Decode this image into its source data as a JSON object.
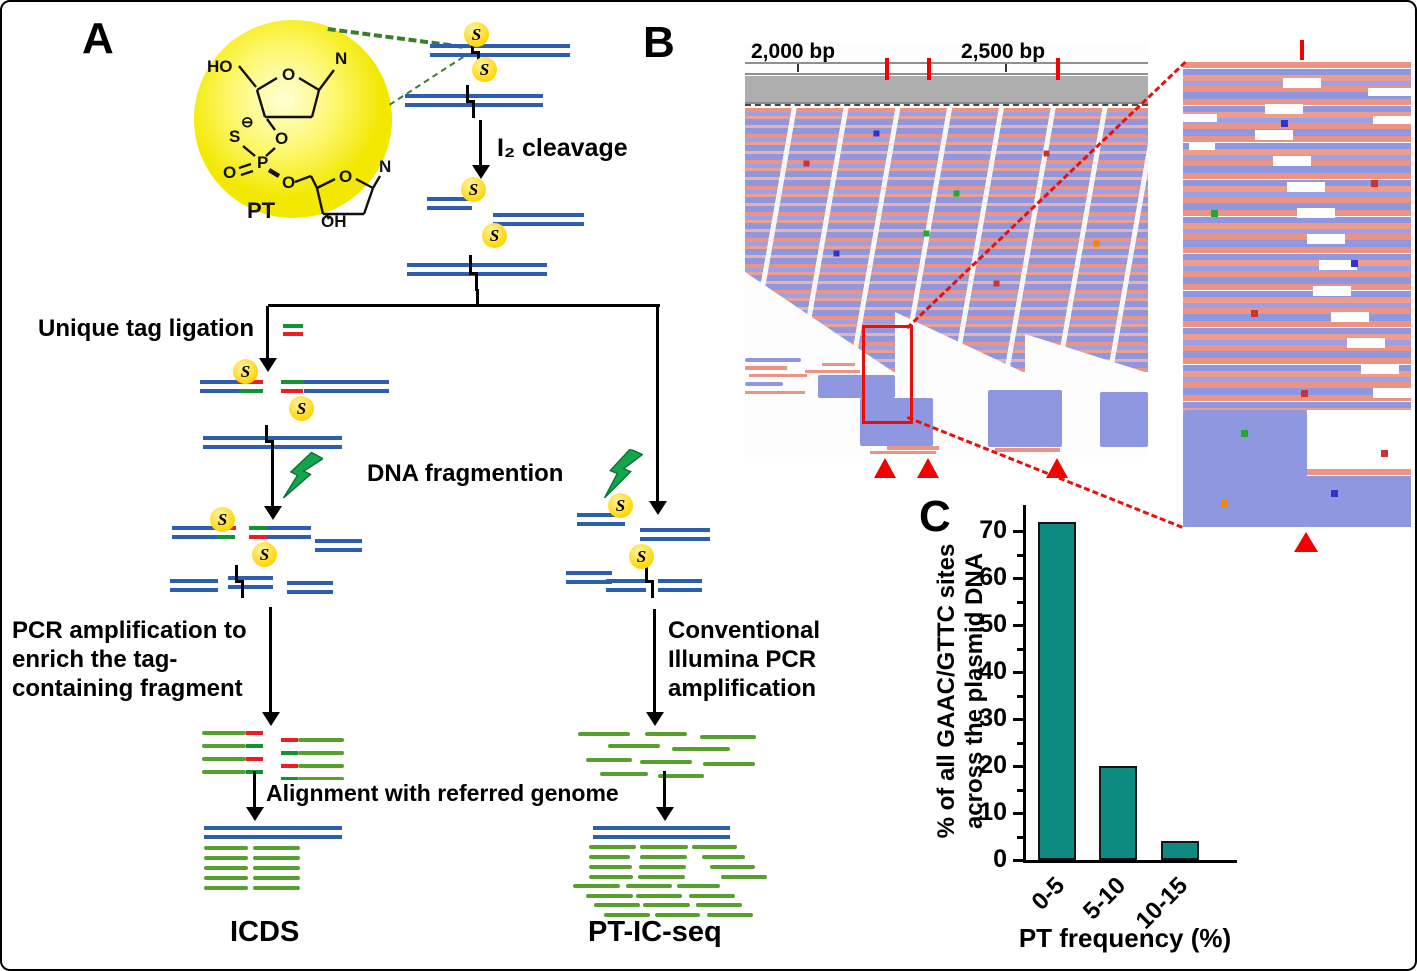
{
  "figure": {
    "panel_a_label": "A",
    "panel_b_label": "B",
    "panel_c_label": "C"
  },
  "panel_a": {
    "s_tag": "S",
    "molecule": {
      "ho": "HO",
      "ring_o_top": "O",
      "n_top": "N",
      "sulfur": "S",
      "charge": "⊖",
      "phosphorus": "P",
      "o_double": "O",
      "o_ester_top": "O",
      "o_ester_bottom": "O",
      "ring_o_bottom": "O",
      "n_bottom": "N",
      "hydroxyl": "OH",
      "name": "PT"
    },
    "steps": {
      "i2_cleavage": "I₂ cleavage",
      "unique_tag_ligation": "Unique tag ligation",
      "dna_fragmention": "DNA fragmention",
      "pcr_left": "PCR amplification to\nenrich the tag-\ncontaining fragment",
      "pcr_right": "Conventional\nIllumina PCR\namplification",
      "alignment": "Alignment with referred genome"
    },
    "outputs": {
      "left": "ICDS",
      "right": "PT-IC-seq"
    }
  },
  "panel_b": {
    "ruler": {
      "left_label": "2,000 bp",
      "right_label": "2,500 bp"
    }
  },
  "chart_data": {
    "type": "bar",
    "categories": [
      "0-5",
      "5-10",
      "10-15"
    ],
    "values": [
      72,
      20,
      4
    ],
    "title": "",
    "xlabel": "PT frequency (%)",
    "ylabel": "% of all GAAC/GTTC sites\nacross the plasmid DNA",
    "ylim": [
      0,
      75
    ],
    "ytick_step": 10,
    "ytick_minor_step": 5,
    "bar_color": "#0f8a82",
    "grid": false,
    "legend": "none"
  },
  "colors": {
    "dna_blue": "#2c5fb0",
    "read_green": "#56a02e",
    "tag_red": "#ee1c24",
    "tag_green": "#119433",
    "s_badge_yellow": "#ffd400",
    "bar_teal": "#0f8a82",
    "igv_salmon": "#ec9384",
    "igv_periwinkle": "#8f97e1",
    "accent_red": "#e8100c"
  }
}
